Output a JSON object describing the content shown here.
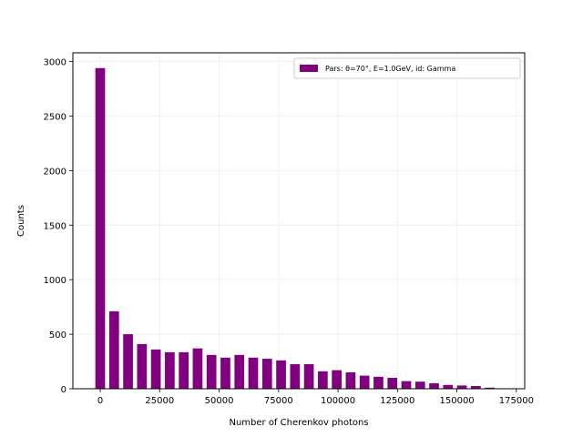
{
  "chart_data": {
    "type": "bar",
    "title": "",
    "xlabel": "Number of Cherenkov photons",
    "ylabel": "Counts",
    "xlim": [
      -11500,
      178500
    ],
    "ylim": [
      0,
      3080
    ],
    "bin_width": 5850,
    "bar_width": 4100,
    "xticks": [
      0,
      25000,
      50000,
      75000,
      100000,
      125000,
      150000,
      175000
    ],
    "yticks": [
      0,
      500,
      1000,
      1500,
      2000,
      2500,
      3000
    ],
    "grid": true,
    "legend_position": "top-right",
    "colors": {
      "bar": "#800080",
      "grid": "#eeeeee",
      "axis": "#000000"
    },
    "series": [
      {
        "name": "Pars: θ=70°, E=1.0GeV, id: Gamma",
        "x": [
          0,
          5850,
          11700,
          17550,
          23400,
          29250,
          35100,
          40950,
          46800,
          52650,
          58500,
          64350,
          70200,
          76050,
          81900,
          87750,
          93600,
          99450,
          105300,
          111150,
          117000,
          122850,
          128700,
          134550,
          140400,
          146250,
          152100,
          157950,
          163800,
          169650
        ],
        "values": [
          2940,
          710,
          500,
          410,
          360,
          335,
          335,
          370,
          310,
          285,
          310,
          285,
          275,
          260,
          225,
          225,
          160,
          170,
          150,
          120,
          110,
          100,
          70,
          65,
          50,
          35,
          30,
          25,
          10,
          0
        ]
      }
    ]
  }
}
